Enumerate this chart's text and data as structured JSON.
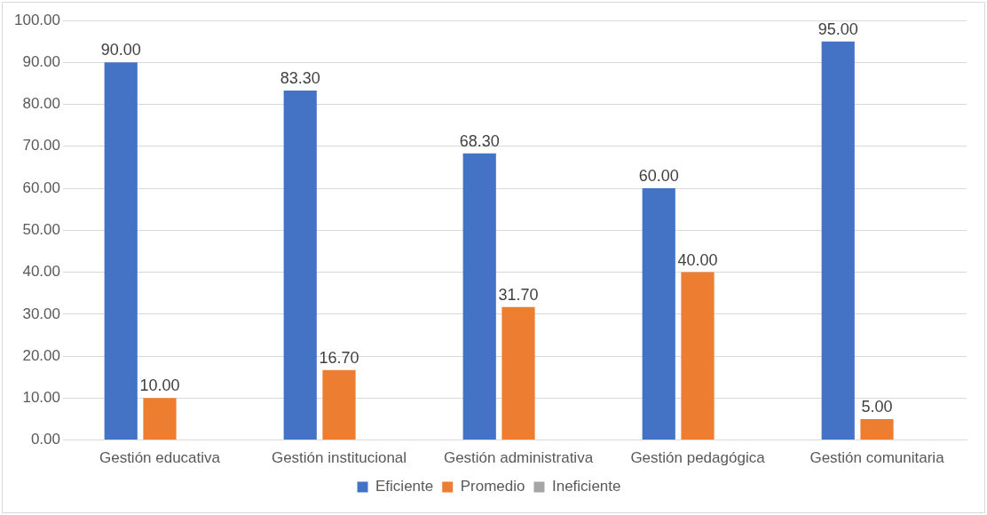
{
  "chart_data": {
    "type": "bar",
    "categories": [
      "Gestión educativa",
      "Gestión institucional",
      "Gestión administrativa",
      "Gestión pedagógica",
      "Gestión comunitaria"
    ],
    "series": [
      {
        "name": "Eficiente",
        "color": "#4472c4",
        "values": [
          90,
          83.3,
          68.3,
          60,
          95
        ],
        "value_labels": [
          "90.00",
          "83.30",
          "68.30",
          "60.00",
          "95.00"
        ]
      },
      {
        "name": "Promedio",
        "color": "#ed7d31",
        "values": [
          10,
          16.7,
          31.7,
          40,
          5
        ],
        "value_labels": [
          "10.00",
          "16.70",
          "31.70",
          "40.00",
          "5.00"
        ]
      },
      {
        "name": "Ineficiente",
        "color": "#a5a5a5",
        "values": [
          0,
          0,
          0,
          0,
          0
        ],
        "value_labels": [
          null,
          null,
          null,
          null,
          null
        ]
      }
    ],
    "ylim": [
      0,
      100
    ],
    "yticks": [
      {
        "value": 0,
        "label": "0.00"
      },
      {
        "value": 10,
        "label": "10.00"
      },
      {
        "value": 20,
        "label": "20.00"
      },
      {
        "value": 30,
        "label": "30.00"
      },
      {
        "value": 40,
        "label": "40.00"
      },
      {
        "value": 50,
        "label": "50.00"
      },
      {
        "value": 60,
        "label": "60.00"
      },
      {
        "value": 70,
        "label": "70.00"
      },
      {
        "value": 80,
        "label": "80.00"
      },
      {
        "value": 90,
        "label": "90.00"
      },
      {
        "value": 100,
        "label": "100.00"
      }
    ],
    "grid": "y",
    "legend": "bottom"
  }
}
